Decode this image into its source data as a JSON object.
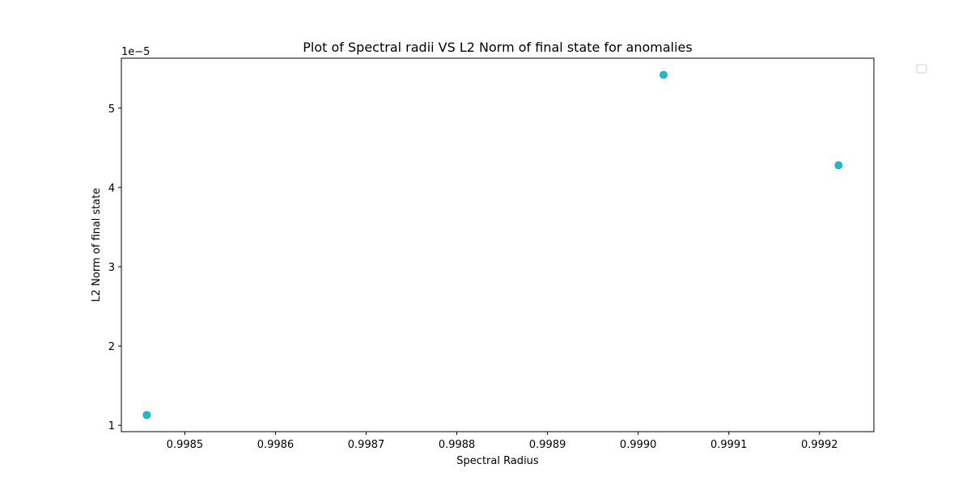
{
  "chart_data": {
    "type": "scatter",
    "title": "Plot of Spectral radii VS L2 Norm of final state for anomalies",
    "xlabel": "Spectral Radius",
    "ylabel": "L2 Norm of final state",
    "y_offset_label": "1e−5",
    "xlim": [
      0.99843,
      0.99926
    ],
    "ylim": [
      0.92,
      5.63
    ],
    "x_ticks": [
      0.9985,
      0.9986,
      0.9987,
      0.9988,
      0.9989,
      0.999,
      0.9991,
      0.9992
    ],
    "x_tick_labels": [
      "0.9985",
      "0.9986",
      "0.9987",
      "0.9988",
      "0.9989",
      "0.9990",
      "0.9991",
      "0.9992"
    ],
    "y_ticks": [
      1,
      2,
      3,
      4,
      5
    ],
    "y_tick_labels": [
      "1",
      "2",
      "3",
      "4",
      "5"
    ],
    "points": [
      {
        "x": 0.998458,
        "y": 1.13
      },
      {
        "x": 0.999028,
        "y": 5.42
      },
      {
        "x": 0.999221,
        "y": 4.28
      }
    ],
    "marker_color": "#17becf",
    "grid": false,
    "legend": "top-right, empty"
  }
}
